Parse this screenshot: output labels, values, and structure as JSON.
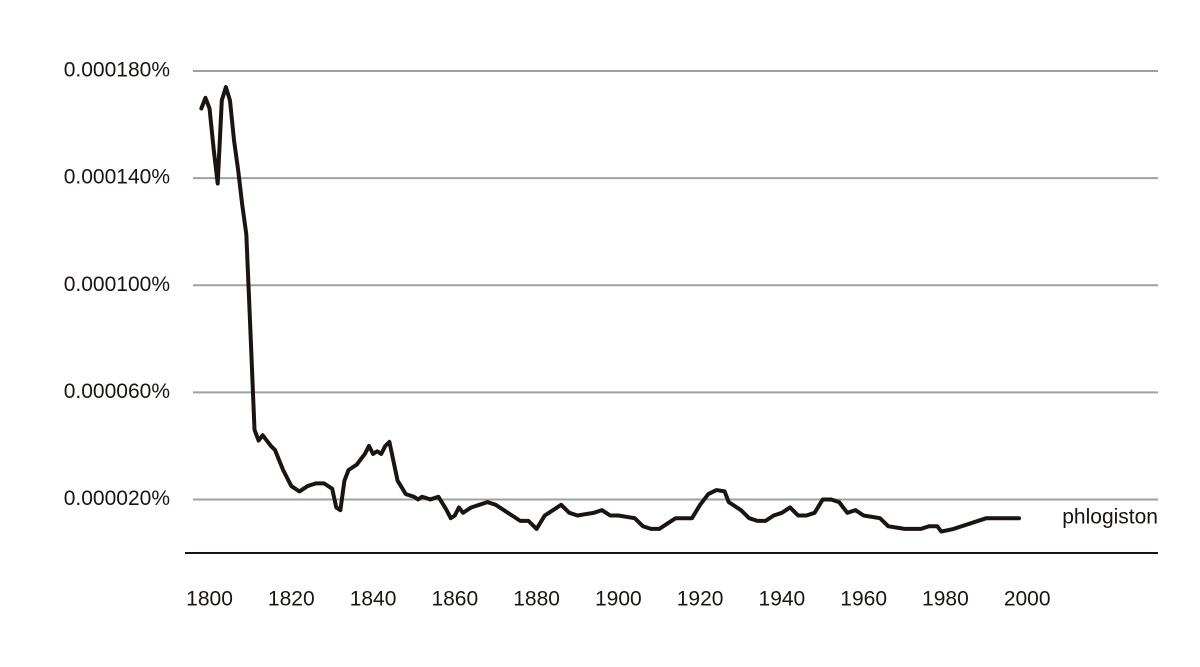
{
  "chart_data": {
    "type": "line",
    "x": [
      1798,
      1799,
      1800,
      1801,
      1802,
      1803,
      1804,
      1805,
      1806,
      1807,
      1808,
      1809,
      1810,
      1811,
      1812,
      1813,
      1814,
      1815,
      1816,
      1818,
      1820,
      1822,
      1824,
      1826,
      1828,
      1830,
      1831,
      1832,
      1833,
      1834,
      1836,
      1838,
      1839,
      1840,
      1841,
      1842,
      1843,
      1844,
      1846,
      1848,
      1850,
      1851,
      1852,
      1854,
      1856,
      1858,
      1859,
      1860,
      1861,
      1862,
      1864,
      1866,
      1868,
      1870,
      1872,
      1874,
      1876,
      1878,
      1880,
      1882,
      1884,
      1886,
      1888,
      1890,
      1894,
      1896,
      1898,
      1900,
      1904,
      1906,
      1908,
      1910,
      1912,
      1914,
      1916,
      1918,
      1920,
      1922,
      1924,
      1926,
      1927,
      1930,
      1932,
      1934,
      1936,
      1938,
      1940,
      1942,
      1944,
      1946,
      1948,
      1950,
      1952,
      1954,
      1956,
      1958,
      1960,
      1964,
      1966,
      1970,
      1972,
      1974,
      1976,
      1978,
      1979,
      1982,
      1986,
      1990,
      1994,
      1998
    ],
    "series": [
      {
        "name": "phlogiston",
        "color": "#1c1413",
        "values": [
          0.000166,
          0.00017,
          0.000166,
          0.000151,
          0.000138,
          0.000169,
          0.000174,
          0.000169,
          0.000154,
          0.000143,
          0.00013,
          0.000119,
          8.3e-05,
          4.6e-05,
          4.2e-05,
          4.4e-05,
          4.2e-05,
          4e-05,
          3.85e-05,
          3.1e-05,
          2.5e-05,
          2.3e-05,
          2.5e-05,
          2.6e-05,
          2.6e-05,
          2.4e-05,
          1.7e-05,
          1.6e-05,
          2.7e-05,
          3.1e-05,
          3.3e-05,
          3.7e-05,
          4e-05,
          3.7e-05,
          3.8e-05,
          3.7e-05,
          4e-05,
          4.15e-05,
          2.7e-05,
          2.2e-05,
          2.1e-05,
          2e-05,
          2.1e-05,
          2e-05,
          2.1e-05,
          1.6e-05,
          1.3e-05,
          1.4e-05,
          1.7e-05,
          1.5e-05,
          1.7e-05,
          1.8e-05,
          1.9e-05,
          1.8e-05,
          1.6e-05,
          1.4e-05,
          1.2e-05,
          1.2e-05,
          9e-06,
          1.4e-05,
          1.6e-05,
          1.8e-05,
          1.5e-05,
          1.4e-05,
          1.5e-05,
          1.6e-05,
          1.4e-05,
          1.4e-05,
          1.3e-05,
          1e-05,
          9e-06,
          9e-06,
          1.1e-05,
          1.3e-05,
          1.3e-05,
          1.3e-05,
          1.8e-05,
          2.2e-05,
          2.35e-05,
          2.3e-05,
          1.9e-05,
          1.6e-05,
          1.3e-05,
          1.2e-05,
          1.2e-05,
          1.4e-05,
          1.5e-05,
          1.7e-05,
          1.4e-05,
          1.4e-05,
          1.5e-05,
          2e-05,
          2e-05,
          1.9e-05,
          1.5e-05,
          1.6e-05,
          1.4e-05,
          1.3e-05,
          1e-05,
          9e-06,
          9e-06,
          9e-06,
          1e-05,
          1e-05,
          8e-06,
          9e-06,
          1.1e-05,
          1.3e-05,
          1.3e-05,
          1.3e-05
        ]
      }
    ],
    "xlim": [
      1794,
      2032
    ],
    "xticks": [
      1800,
      1820,
      1840,
      1860,
      1880,
      1900,
      1920,
      1940,
      1960,
      1980,
      2000
    ],
    "ylim": [
      0,
      0.00018
    ],
    "yticks": [
      {
        "value": 2e-05,
        "label": "0.000020%"
      },
      {
        "value": 6e-05,
        "label": "0.000060%"
      },
      {
        "value": 0.0001,
        "label": "0.000100%"
      },
      {
        "value": 0.00014,
        "label": "0.000140%"
      },
      {
        "value": 0.00018,
        "label": "0.000180%"
      }
    ],
    "grid": true
  }
}
